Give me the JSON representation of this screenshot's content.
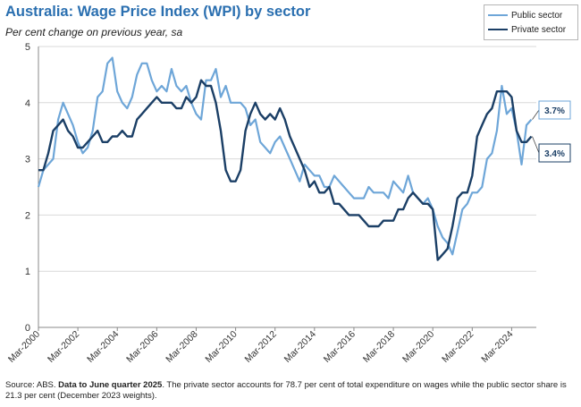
{
  "title": "Australia: Wage Price Index (WPI) by sector",
  "subtitle": "Per cent change on previous year, sa",
  "legend": {
    "public": "Public sector",
    "private": "Private sector"
  },
  "source": {
    "prefix": "Source: ABS.",
    "bold": "Data to June quarter 2025",
    "rest": ". The private sector accounts for 78.7 per cent of total expenditure on wages while the public sector share is 21.3 per cent (December 2023 weights)."
  },
  "chart_data": {
    "type": "line",
    "title": "Australia: Wage Price Index (WPI) by sector",
    "xlabel": "",
    "ylabel": "Per cent change on previous year, sa",
    "ylim": [
      0,
      5
    ],
    "yticks": [
      "0",
      "1",
      "2",
      "3",
      "4",
      "5"
    ],
    "x_start": 2000,
    "x_end": 2025.25,
    "quarterly_from": "Mar-2000",
    "x_tick_labels": [
      "Mar-2000",
      "Mar-2002",
      "Mar-2004",
      "Mar-2006",
      "Mar-2008",
      "Mar-2010",
      "Mar-2012",
      "Mar-2014",
      "Mar-2016",
      "Mar-2018",
      "Mar-2020",
      "Mar-2022",
      "Mar-2024"
    ],
    "grid": "horizontal",
    "legend_position": "top-right",
    "colors": {
      "public": "#6ea6d8",
      "private": "#1b3f66"
    },
    "series": [
      {
        "name": "Public sector",
        "values": [
          2.5,
          2.8,
          2.9,
          3.0,
          3.7,
          4.0,
          3.8,
          3.6,
          3.3,
          3.1,
          3.2,
          3.5,
          4.1,
          4.2,
          4.7,
          4.8,
          4.2,
          4.0,
          3.9,
          4.1,
          4.5,
          4.7,
          4.7,
          4.4,
          4.2,
          4.3,
          4.2,
          4.6,
          4.3,
          4.2,
          4.3,
          4.0,
          3.8,
          3.7,
          4.4,
          4.4,
          4.6,
          4.1,
          4.3,
          4.0,
          4.0,
          4.0,
          3.9,
          3.6,
          3.7,
          3.3,
          3.2,
          3.1,
          3.3,
          3.4,
          3.2,
          3.0,
          2.8,
          2.6,
          2.9,
          2.8,
          2.7,
          2.7,
          2.5,
          2.5,
          2.7,
          2.6,
          2.5,
          2.4,
          2.3,
          2.3,
          2.3,
          2.5,
          2.4,
          2.4,
          2.4,
          2.3,
          2.6,
          2.5,
          2.4,
          2.7,
          2.4,
          2.3,
          2.2,
          2.3,
          2.1,
          1.8,
          1.6,
          1.5,
          1.3,
          1.7,
          2.1,
          2.2,
          2.4,
          2.4,
          2.5,
          3.0,
          3.1,
          3.5,
          4.3,
          3.8,
          3.9,
          3.5,
          2.9,
          3.6,
          3.7
        ]
      },
      {
        "name": "Private sector",
        "values": [
          2.8,
          2.8,
          3.1,
          3.5,
          3.6,
          3.7,
          3.5,
          3.4,
          3.2,
          3.2,
          3.3,
          3.4,
          3.5,
          3.3,
          3.3,
          3.4,
          3.4,
          3.5,
          3.4,
          3.4,
          3.7,
          3.8,
          3.9,
          4.0,
          4.1,
          4.0,
          4.0,
          4.0,
          3.9,
          3.9,
          4.1,
          4.0,
          4.1,
          4.4,
          4.3,
          4.3,
          4.0,
          3.5,
          2.8,
          2.6,
          2.6,
          2.8,
          3.5,
          3.8,
          4.0,
          3.8,
          3.7,
          3.8,
          3.7,
          3.9,
          3.7,
          3.4,
          3.2,
          3.0,
          2.8,
          2.5,
          2.6,
          2.4,
          2.4,
          2.5,
          2.2,
          2.2,
          2.1,
          2.0,
          2.0,
          2.0,
          1.9,
          1.8,
          1.8,
          1.8,
          1.9,
          1.9,
          1.9,
          2.1,
          2.1,
          2.3,
          2.4,
          2.3,
          2.2,
          2.2,
          2.1,
          1.2,
          1.3,
          1.4,
          1.8,
          2.3,
          2.4,
          2.4,
          2.7,
          3.4,
          3.6,
          3.8,
          3.9,
          4.2,
          4.2,
          4.2,
          4.1,
          3.5,
          3.3,
          3.3,
          3.4
        ]
      }
    ],
    "end_labels": {
      "public": "3.7%",
      "private": "3.4%"
    }
  }
}
